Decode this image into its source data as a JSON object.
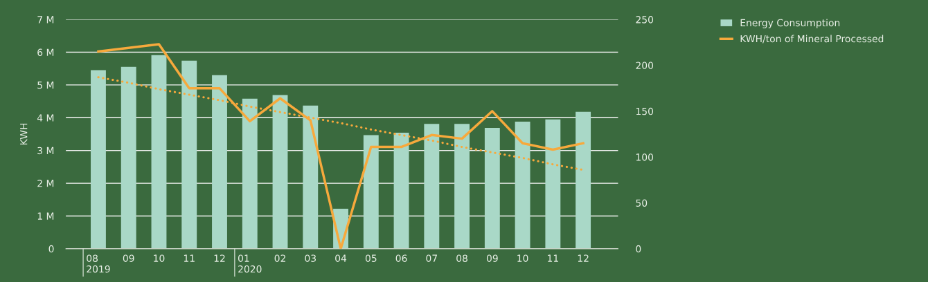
{
  "chart_data": {
    "type": "bar",
    "ylabel": "KWH",
    "categories": [
      "08\n2019",
      "09",
      "10",
      "11",
      "12",
      "01\n2020",
      "02",
      "03",
      "04",
      "05",
      "06",
      "07",
      "08",
      "09",
      "10",
      "11",
      "12"
    ],
    "series": [
      {
        "name": "Energy Consumption",
        "color": "#a9d8c7",
        "values": [
          5450000,
          5550000,
          5910000,
          5740000,
          5300000,
          4580000,
          4690000,
          4370000,
          1220000,
          3470000,
          3540000,
          3810000,
          3810000,
          3690000,
          3880000,
          3950000,
          4180000
        ]
      },
      {
        "name": "KWH/ton of Mineral Processed",
        "type": "line",
        "axis": "y2",
        "color": "#f7a93c",
        "line_style": "solid",
        "values": [
          215,
          219,
          223,
          175,
          175,
          139,
          164,
          140,
          0,
          111,
          111,
          124,
          120,
          150,
          115,
          108,
          115
        ]
      },
      {
        "type": "line",
        "axis": "y2",
        "color": "#f7a93c",
        "line_style": "dotted",
        "values": [
          187,
          181,
          174,
          168,
          162,
          155,
          149,
          143,
          137,
          130,
          124,
          118,
          111,
          105,
          99,
          92,
          86
        ]
      }
    ],
    "ylim": [
      0,
      7000000
    ],
    "yticks": [
      {
        "value": 0,
        "label": "0"
      },
      {
        "value": 1000000,
        "label": "1 M"
      },
      {
        "value": 2000000,
        "label": "2 M"
      },
      {
        "value": 3000000,
        "label": "3 M"
      },
      {
        "value": 4000000,
        "label": "4 M"
      },
      {
        "value": 5000000,
        "label": "5 M"
      },
      {
        "value": 6000000,
        "label": "6 M"
      },
      {
        "value": 7000000,
        "label": "7 M"
      }
    ],
    "y2lim": [
      0,
      250
    ],
    "y2ticks": [
      0,
      50,
      100,
      150,
      200,
      250
    ],
    "grid": "y",
    "legend": "top right"
  }
}
